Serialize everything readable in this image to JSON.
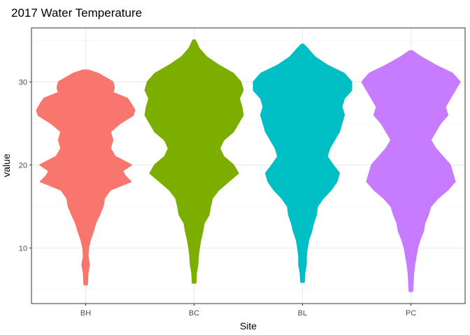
{
  "chart_data": {
    "type": "violin",
    "title": "2017 Water Temperature",
    "xlabel": "Site",
    "ylabel": "value",
    "categories": [
      "BH",
      "BC",
      "BL",
      "PC"
    ],
    "ylim": [
      3.3,
      36.5
    ],
    "y_ticks": [
      10,
      20,
      30
    ],
    "grid": true,
    "legend": "none",
    "series": [
      {
        "color": "#F8766D",
        "min": 5.6,
        "max": 31.4,
        "profile": [
          [
            5.6,
            0.03
          ],
          [
            7,
            0.04
          ],
          [
            8,
            0.07
          ],
          [
            9,
            0.04
          ],
          [
            10,
            0.05
          ],
          [
            11,
            0.09
          ],
          [
            12,
            0.15
          ],
          [
            13,
            0.2
          ],
          [
            14,
            0.28
          ],
          [
            15,
            0.35
          ],
          [
            16,
            0.38
          ],
          [
            17,
            0.5
          ],
          [
            18,
            0.92
          ],
          [
            18.7,
            0.8
          ],
          [
            19.3,
            0.75
          ],
          [
            20,
            0.93
          ],
          [
            21,
            0.6
          ],
          [
            22,
            0.5
          ],
          [
            23,
            0.55
          ],
          [
            24,
            0.5
          ],
          [
            25,
            0.7
          ],
          [
            26,
            0.97
          ],
          [
            26.6,
            1.0
          ],
          [
            27.3,
            0.93
          ],
          [
            28,
            0.85
          ],
          [
            28.7,
            0.55
          ],
          [
            29.3,
            0.58
          ],
          [
            30,
            0.55
          ],
          [
            31,
            0.25
          ],
          [
            31.4,
            0.05
          ]
        ]
      },
      {
        "color": "#7CAE00",
        "min": 5.8,
        "max": 35.0,
        "profile": [
          [
            5.8,
            0.03
          ],
          [
            7,
            0.04
          ],
          [
            8,
            0.07
          ],
          [
            9,
            0.08
          ],
          [
            10,
            0.1
          ],
          [
            11,
            0.13
          ],
          [
            12,
            0.17
          ],
          [
            13,
            0.2
          ],
          [
            14,
            0.3
          ],
          [
            15,
            0.33
          ],
          [
            16,
            0.37
          ],
          [
            17,
            0.5
          ],
          [
            18,
            0.7
          ],
          [
            19,
            0.9
          ],
          [
            20,
            0.8
          ],
          [
            21,
            0.6
          ],
          [
            22,
            0.52
          ],
          [
            23,
            0.6
          ],
          [
            24,
            0.8
          ],
          [
            25,
            0.9
          ],
          [
            26,
            1.0
          ],
          [
            27,
            0.97
          ],
          [
            28,
            0.92
          ],
          [
            29,
            1.0
          ],
          [
            30,
            0.95
          ],
          [
            31,
            0.8
          ],
          [
            32,
            0.5
          ],
          [
            33,
            0.25
          ],
          [
            34,
            0.1
          ],
          [
            35,
            0.02
          ]
        ]
      },
      {
        "color": "#00BFC4",
        "min": 5.9,
        "max": 34.5,
        "profile": [
          [
            5.9,
            0.03
          ],
          [
            7,
            0.04
          ],
          [
            8,
            0.07
          ],
          [
            9,
            0.07
          ],
          [
            10,
            0.09
          ],
          [
            11,
            0.12
          ],
          [
            12,
            0.18
          ],
          [
            13,
            0.22
          ],
          [
            14,
            0.28
          ],
          [
            15,
            0.3
          ],
          [
            16,
            0.42
          ],
          [
            17,
            0.58
          ],
          [
            18,
            0.7
          ],
          [
            19,
            0.75
          ],
          [
            20,
            0.62
          ],
          [
            21,
            0.5
          ],
          [
            22,
            0.55
          ],
          [
            23,
            0.65
          ],
          [
            24,
            0.75
          ],
          [
            25,
            0.8
          ],
          [
            26,
            0.85
          ],
          [
            27,
            0.8
          ],
          [
            28,
            0.85
          ],
          [
            29,
            1.0
          ],
          [
            30,
            1.0
          ],
          [
            31,
            0.85
          ],
          [
            32,
            0.5
          ],
          [
            33,
            0.25
          ],
          [
            34,
            0.1
          ],
          [
            34.5,
            0.02
          ]
        ]
      },
      {
        "color": "#C77CFF",
        "min": 4.8,
        "max": 33.7,
        "profile": [
          [
            4.8,
            0.03
          ],
          [
            6,
            0.04
          ],
          [
            7,
            0.05
          ],
          [
            8,
            0.07
          ],
          [
            9,
            0.1
          ],
          [
            10,
            0.13
          ],
          [
            11,
            0.18
          ],
          [
            12,
            0.25
          ],
          [
            13,
            0.28
          ],
          [
            14,
            0.35
          ],
          [
            15,
            0.4
          ],
          [
            16,
            0.55
          ],
          [
            17,
            0.75
          ],
          [
            18,
            0.9
          ],
          [
            19,
            0.85
          ],
          [
            20,
            0.8
          ],
          [
            21,
            0.65
          ],
          [
            22,
            0.5
          ],
          [
            23,
            0.4
          ],
          [
            24,
            0.5
          ],
          [
            25,
            0.6
          ],
          [
            26,
            0.75
          ],
          [
            27,
            0.7
          ],
          [
            28,
            0.8
          ],
          [
            29,
            0.9
          ],
          [
            30,
            1.0
          ],
          [
            31,
            0.85
          ],
          [
            32,
            0.5
          ],
          [
            33,
            0.2
          ],
          [
            33.7,
            0.03
          ]
        ]
      }
    ]
  }
}
